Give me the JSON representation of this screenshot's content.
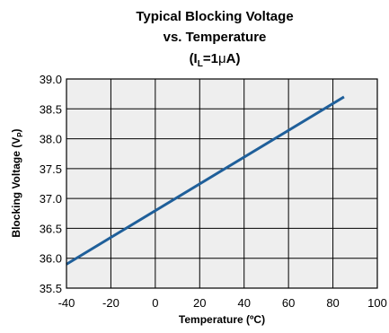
{
  "chart_data": {
    "type": "line",
    "title": {
      "line1": "Typical Blocking Voltage",
      "line2": "vs. Temperature",
      "line3_prefix": "(I",
      "line3_sub": "L",
      "line3_mid": "=1",
      "line3_mu": "μ",
      "line3_suffix": "A)"
    },
    "xlabel": "Temperature (ºC)",
    "ylabel": {
      "prefix": "Blocking Voltage (V",
      "sub": "P",
      "suffix": ")"
    },
    "xlim": [
      -40,
      100
    ],
    "ylim": [
      35.5,
      39.0
    ],
    "xticks": [
      -40,
      -20,
      0,
      20,
      40,
      60,
      80,
      100
    ],
    "xtick_labels": [
      "-40",
      "-20",
      "0",
      "20",
      "40",
      "60",
      "80",
      "100"
    ],
    "yticks": [
      35.5,
      36.0,
      36.5,
      37.0,
      37.5,
      38.0,
      38.5,
      39.0
    ],
    "ytick_labels": [
      "35.5",
      "36.0",
      "36.5",
      "37.0",
      "37.5",
      "38.0",
      "38.5",
      "39.0"
    ],
    "grid": true,
    "plot_background": "#eeeeee",
    "grid_color": "#000000",
    "series": [
      {
        "color": "#1f5f9a",
        "x": [
          -40,
          85
        ],
        "y": [
          35.9,
          38.7
        ]
      }
    ]
  }
}
